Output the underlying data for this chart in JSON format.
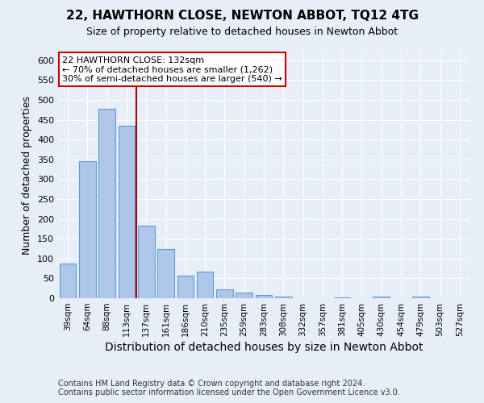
{
  "title": "22, HAWTHORN CLOSE, NEWTON ABBOT, TQ12 4TG",
  "subtitle": "Size of property relative to detached houses in Newton Abbot",
  "xlabel": "Distribution of detached houses by size in Newton Abbot",
  "ylabel": "Number of detached properties",
  "footer_line1": "Contains HM Land Registry data © Crown copyright and database right 2024.",
  "footer_line2": "Contains public sector information licensed under the Open Government Licence v3.0.",
  "categories": [
    "39sqm",
    "64sqm",
    "88sqm",
    "113sqm",
    "137sqm",
    "161sqm",
    "186sqm",
    "210sqm",
    "235sqm",
    "259sqm",
    "283sqm",
    "308sqm",
    "332sqm",
    "357sqm",
    "381sqm",
    "405sqm",
    "430sqm",
    "454sqm",
    "479sqm",
    "503sqm",
    "527sqm"
  ],
  "values": [
    88,
    345,
    478,
    435,
    183,
    125,
    57,
    68,
    23,
    14,
    8,
    5,
    0,
    0,
    3,
    0,
    5,
    0,
    5,
    0,
    0
  ],
  "bar_color": "#aec6e8",
  "bar_edge_color": "#5b9bd5",
  "background_color": "#e8eef8",
  "grid_color": "#ffffff",
  "red_line_x": 3.5,
  "red_line_color": "#aa0000",
  "annotation_line1": "22 HAWTHORN CLOSE: 132sqm",
  "annotation_line2": "← 70% of detached houses are smaller (1,262)",
  "annotation_line3": "30% of semi-detached houses are larger (540) →",
  "annotation_box_color": "#ffffff",
  "annotation_border_color": "#cc0000",
  "ylim": [
    0,
    620
  ],
  "yticks": [
    0,
    50,
    100,
    150,
    200,
    250,
    300,
    350,
    400,
    450,
    500,
    550,
    600
  ],
  "title_fontsize": 11,
  "subtitle_fontsize": 9,
  "xlabel_fontsize": 10,
  "ylabel_fontsize": 9,
  "tick_fontsize": 8,
  "xtick_fontsize": 7.5,
  "footer_fontsize": 7,
  "annotation_fontsize": 8
}
